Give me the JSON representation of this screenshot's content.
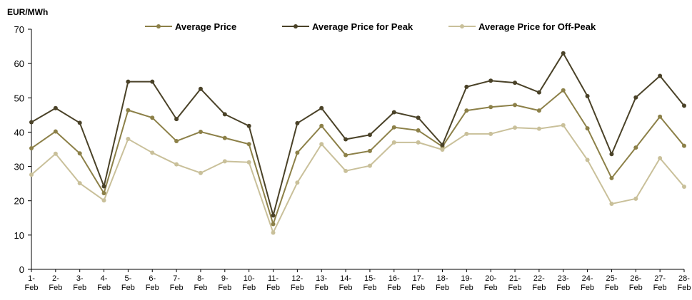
{
  "chart_data": {
    "type": "line",
    "ylabel": "EUR/MWh",
    "ylim": [
      0,
      70
    ],
    "yticks": [
      0,
      10,
      20,
      30,
      40,
      50,
      60,
      70
    ],
    "grid": false,
    "legend_position": "top",
    "categories": [
      "1-Feb",
      "2-Feb",
      "3-Feb",
      "4-Feb",
      "5-Feb",
      "6-Feb",
      "7-Feb",
      "8-Feb",
      "9-Feb",
      "10-Feb",
      "11-Feb",
      "12-Feb",
      "13-Feb",
      "14-Feb",
      "15-Feb",
      "16-Feb",
      "17-Feb",
      "18-Feb",
      "19-Feb",
      "20-Feb",
      "21-Feb",
      "22-Feb",
      "23-Feb",
      "24-Feb",
      "25-Feb",
      "26-Feb",
      "27-Feb",
      "28-Feb"
    ],
    "series": [
      {
        "name": "Average Price",
        "color": "#8C8048",
        "values": [
          35.3,
          40.2,
          33.8,
          22.2,
          46.4,
          44.2,
          37.4,
          40.1,
          38.3,
          36.5,
          13.2,
          34.0,
          41.8,
          33.3,
          34.5,
          41.4,
          40.5,
          35.8,
          46.3,
          47.3,
          47.9,
          46.3,
          52.2,
          41.1,
          26.6,
          35.5,
          44.5,
          36.0
        ]
      },
      {
        "name": "Average Price for Peak",
        "color": "#4A4228",
        "values": [
          42.9,
          47.0,
          42.7,
          24.2,
          54.7,
          54.7,
          43.8,
          52.6,
          45.2,
          41.8,
          15.7,
          42.6,
          47.0,
          37.9,
          39.2,
          45.8,
          44.2,
          36.3,
          53.2,
          55.0,
          54.4,
          51.6,
          63.0,
          50.5,
          33.6,
          50.1,
          56.4,
          47.7
        ]
      },
      {
        "name": "Average Price for Off-Peak",
        "color": "#C9C09A",
        "values": [
          27.6,
          33.7,
          25.1,
          20.1,
          38.0,
          34.0,
          30.6,
          28.1,
          31.5,
          31.2,
          10.7,
          25.3,
          36.5,
          28.7,
          30.2,
          37.0,
          37.0,
          34.9,
          39.5,
          39.5,
          41.3,
          41.0,
          42.0,
          31.9,
          19.1,
          20.6,
          32.4,
          24.1
        ]
      }
    ]
  }
}
